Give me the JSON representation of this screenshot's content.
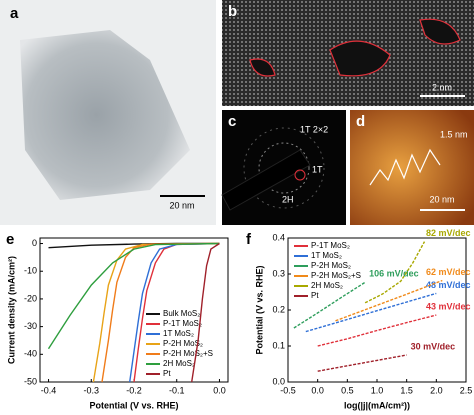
{
  "images": [
    {
      "label": "a",
      "scale_bar": "20 nm"
    },
    {
      "label": "b",
      "scale_bar": "2 nm"
    },
    {
      "label": "c",
      "annotations": [
        "1T 2×2",
        "1T",
        "2H"
      ]
    },
    {
      "label": "d",
      "scale_bar": "20 nm",
      "annotations": [
        "1.5 nm"
      ]
    }
  ],
  "chart_data": [
    {
      "type": "line",
      "panel": "e",
      "xlabel": "Potential (V vs. RHE)",
      "ylabel": "Current density (mA/cm²)",
      "xlim": [
        -0.42,
        0.02
      ],
      "xticks": [
        -0.4,
        -0.3,
        -0.2,
        -0.1,
        {
          "value": 0,
          "label": "0.0"
        }
      ],
      "ylim": [
        -50,
        2
      ],
      "yticks": [
        0,
        -10,
        -20,
        -30,
        -40,
        -50
      ],
      "legend": "lower-right",
      "series": [
        {
          "name": "Bulk MoS₂",
          "color": "#111111",
          "x": [
            -0.4,
            -0.3,
            -0.2,
            -0.1,
            0
          ],
          "values": [
            -1.5,
            -0.6,
            -0.2,
            0,
            0
          ]
        },
        {
          "name": "P-1T MoS₂",
          "color": "#e0303a",
          "x": [
            -0.2,
            -0.19,
            -0.18,
            -0.17,
            -0.15,
            -0.13,
            -0.1,
            0
          ],
          "values": [
            -50,
            -38,
            -27,
            -17,
            -7,
            -2,
            -0.3,
            0
          ]
        },
        {
          "name": "1T MoS₂",
          "color": "#2f6fd6",
          "x": [
            -0.21,
            -0.2,
            -0.19,
            -0.18,
            -0.16,
            -0.14,
            -0.1,
            0
          ],
          "values": [
            -50,
            -39,
            -28,
            -18,
            -7,
            -2,
            -0.3,
            0
          ]
        },
        {
          "name": "P-2H MoS₂",
          "color": "#e8a317",
          "x": [
            -0.295,
            -0.28,
            -0.27,
            -0.26,
            -0.24,
            -0.22,
            -0.18,
            0
          ],
          "values": [
            -50,
            -36,
            -25,
            -15,
            -6,
            -2,
            -0.3,
            0
          ]
        },
        {
          "name": "P-2H MoS₂+S",
          "color": "#f07c1a",
          "x": [
            -0.275,
            -0.26,
            -0.25,
            -0.24,
            -0.22,
            -0.2,
            -0.16,
            0
          ],
          "values": [
            -50,
            -35,
            -24,
            -14,
            -5,
            -1.5,
            -0.2,
            0
          ]
        },
        {
          "name": "2H MoS₂",
          "color": "#2e9e3e",
          "x": [
            -0.4,
            -0.35,
            -0.3,
            -0.25,
            -0.2,
            -0.15,
            0
          ],
          "values": [
            -38,
            -26,
            -15,
            -7,
            -2,
            -0.4,
            0
          ]
        },
        {
          "name": "Pt",
          "color": "#a0202a",
          "x": [
            -0.065,
            -0.05,
            -0.04,
            -0.03,
            -0.02,
            0
          ],
          "values": [
            -50,
            -35,
            -20,
            -8,
            -2,
            0
          ]
        }
      ]
    },
    {
      "type": "line",
      "panel": "f",
      "xlabel": "log(|j|(mA/cm²))",
      "ylabel": "Potential (V vs. RHE)",
      "xlim": [
        -0.5,
        2.5
      ],
      "xticks": [
        -0.5,
        {
          "value": 0,
          "label": "0.0"
        },
        0.5,
        {
          "value": 1,
          "label": "1.0"
        },
        1.5,
        {
          "value": 2,
          "label": "2.0"
        },
        2.5
      ],
      "ylim": [
        0,
        0.4
      ],
      "yticks": [
        {
          "value": 0,
          "label": "0.0"
        },
        0.1,
        0.2,
        0.3,
        0.4
      ],
      "legend": "upper-left",
      "series": [
        {
          "name": "P-1T MoS₂",
          "color": "#e0303a",
          "annotation": "43 mV/dec",
          "x": [
            0,
            0.5,
            1,
            1.5,
            2
          ],
          "values": [
            0.1,
            0.12,
            0.143,
            0.165,
            0.186
          ]
        },
        {
          "name": "1T MoS₂",
          "color": "#2f6fd6",
          "annotation": "48 mV/dec",
          "x": [
            -0.2,
            0.4,
            1,
            1.6,
            2
          ],
          "values": [
            0.14,
            0.169,
            0.198,
            0.227,
            0.246
          ]
        },
        {
          "name": "P-2H MoS₂",
          "color": "#2e9e5c",
          "annotation": "106 mV/dec",
          "x": [
            -0.4,
            0,
            0.4,
            0.8
          ],
          "values": [
            0.15,
            0.192,
            0.235,
            0.277
          ]
        },
        {
          "name": "P-2H MoS₂+S",
          "color": "#f08a1a",
          "annotation": "62 mV/dec",
          "x": [
            0.3,
            0.9,
            1.5,
            2.1
          ],
          "values": [
            0.17,
            0.207,
            0.244,
            0.282
          ]
        },
        {
          "name": "2H MoS₂",
          "color": "#a8a800",
          "annotation": "82 mV/dec",
          "x": [
            0.8,
            1.1,
            1.4,
            1.6,
            1.8
          ],
          "values": [
            0.22,
            0.245,
            0.28,
            0.33,
            0.39
          ]
        },
        {
          "name": "Pt",
          "color": "#a0202a",
          "annotation": "30 mV/dec",
          "x": [
            0,
            0.5,
            1,
            1.5
          ],
          "values": [
            0.03,
            0.045,
            0.06,
            0.075
          ]
        }
      ]
    }
  ]
}
